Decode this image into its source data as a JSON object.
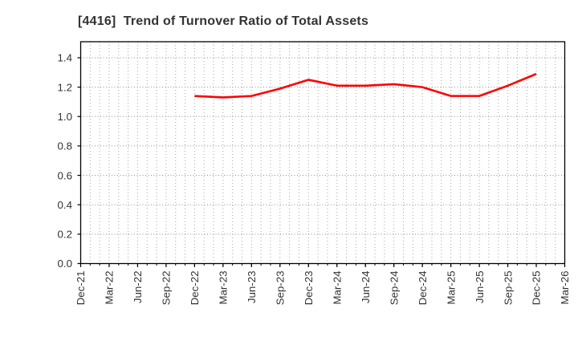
{
  "window": {
    "title": "[4416]  Trend of Turnover Ratio of Total Assets"
  },
  "chart_data": {
    "type": "line",
    "title": "[4416]  Trend of Turnover Ratio of Total Assets",
    "x_tick_labels": [
      "Dec-21",
      "Mar-22",
      "Jun-22",
      "Sep-22",
      "Dec-22",
      "Mar-23",
      "Jun-23",
      "Sep-23",
      "Dec-23",
      "Mar-24",
      "Jun-24",
      "Sep-24",
      "Dec-24",
      "Mar-25",
      "Jun-25",
      "Sep-25",
      "Dec-25",
      "Mar-26"
    ],
    "y_tick_labels": [
      "0.0",
      "0.2",
      "0.4",
      "0.6",
      "0.8",
      "1.0",
      "1.2",
      "1.4"
    ],
    "y_ticks": [
      0.0,
      0.2,
      0.4,
      0.6,
      0.8,
      1.0,
      1.2,
      1.4
    ],
    "ylim": [
      0,
      1.509
    ],
    "xlabel": "",
    "ylabel": "",
    "grid": {
      "horizontal": "major 0.2 steps, dotted gray",
      "vertical": "monthly, dotted gray"
    },
    "legend_position": "none",
    "series": [
      {
        "name": "Turnover Ratio of Total Assets",
        "color": "#ff0000",
        "x": [
          "Dec-22",
          "Mar-23",
          "Jun-23",
          "Sep-23",
          "Dec-23",
          "Mar-24",
          "Jun-24",
          "Sep-24",
          "Dec-24",
          "Mar-25",
          "Jun-25",
          "Sep-25",
          "Dec-25"
        ],
        "values": [
          1.14,
          1.13,
          1.14,
          1.19,
          1.25,
          1.21,
          1.21,
          1.22,
          1.2,
          1.14,
          1.14,
          1.21,
          1.29
        ]
      }
    ]
  },
  "colors": {
    "line": "#ff0000",
    "title_text": "#333333",
    "tick_text": "#333333",
    "axis": "#000000",
    "grid_h": "#8f8f8f",
    "grid_v": "#a6a6a6",
    "background": "#ffffff"
  }
}
